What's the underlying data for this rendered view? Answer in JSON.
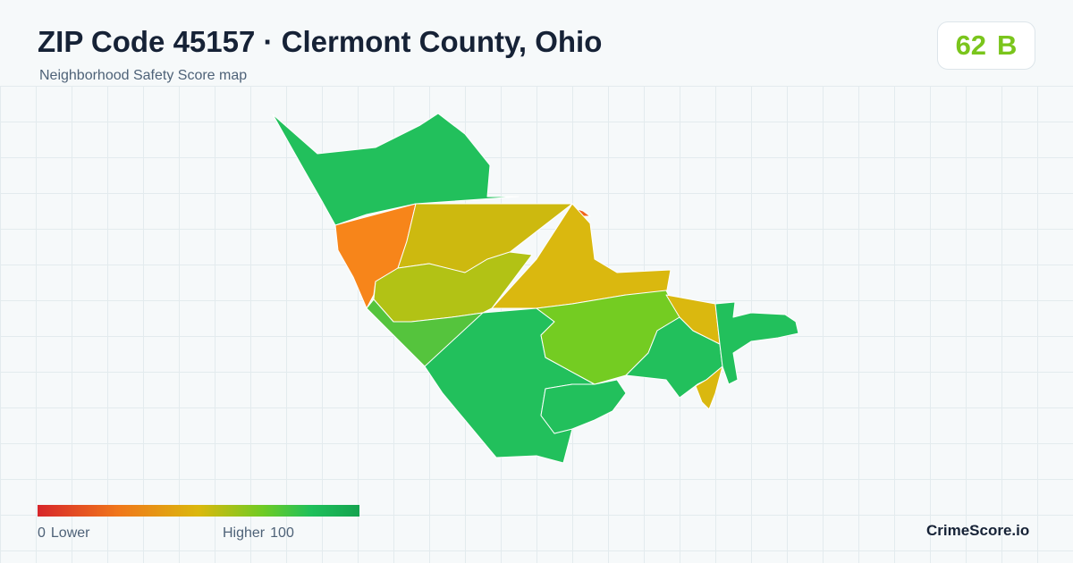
{
  "header": {
    "title": "ZIP Code 45157 · Clermont County, Ohio",
    "subtitle": "Neighborhood Safety Score map"
  },
  "score": {
    "value": 62,
    "grade": "B"
  },
  "legend": {
    "min": 0,
    "min_label": "Lower",
    "max_label": "Higher",
    "max": 100
  },
  "brand": "CrimeScore.io"
}
